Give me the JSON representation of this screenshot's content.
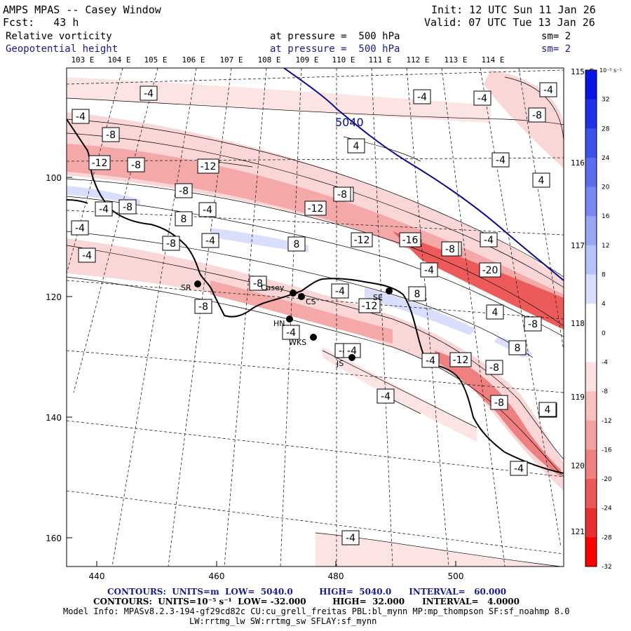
{
  "header": {
    "title": "AMPS MPAS -- Casey Window",
    "fcst": "Fcst:   43 h",
    "init": "Init: 12 UTC Sun 11 Jan 26",
    "valid": "Valid: 07 UTC Tue 13 Jan 26",
    "field1": "Relative vorticity",
    "field2": "Geopotential height",
    "pressure1": "at pressure =  500 hPa",
    "pressure2": "at pressure =  500 hPa",
    "sm1": "sm= 2",
    "sm2": "sm= 2"
  },
  "axes": {
    "lon_top": [
      "103 E",
      "104 E",
      "105 E",
      "106 E",
      "107 E",
      "108 E",
      "109 E",
      "110 E",
      "111 E",
      "112 E",
      "113 E",
      "114 E"
    ],
    "lat_right": [
      "115 E",
      "116 E",
      "117 E",
      "118 E",
      "119 E",
      "120 E",
      "121 E"
    ],
    "y_ticks": [
      "100",
      "120",
      "140",
      "160"
    ],
    "x_ticks": [
      "440",
      "460",
      "480",
      "500"
    ]
  },
  "colorbar": {
    "unit": "10⁻⁵ s⁻¹",
    "labels": [
      "32",
      "28",
      "24",
      "20",
      "16",
      "12",
      "8",
      "4",
      "0",
      "-4",
      "-8",
      "-12",
      "-16",
      "-20",
      "-24",
      "-28",
      "-32"
    ],
    "colors": [
      "#0a14e6",
      "#1e32e8",
      "#3c50ea",
      "#5a6eee",
      "#7888f2",
      "#98a6f6",
      "#b8c2fa",
      "#d8defc",
      "#ffffff",
      "#ffffff",
      "#fde0e0",
      "#f9c0c0",
      "#f5a0a0",
      "#f08080",
      "#ec5858",
      "#e83030",
      "#ff0000"
    ]
  },
  "stations": [
    {
      "name": "SR"
    },
    {
      "name": "Casey"
    },
    {
      "name": "CS"
    },
    {
      "name": "HN"
    },
    {
      "name": "WKS"
    },
    {
      "name": "JS"
    },
    {
      "name": "SE"
    }
  ],
  "height_contour_label": "5040",
  "contour_labels": [
    "-4",
    "-4",
    "-4",
    "-4",
    "-4",
    "-8",
    "-8",
    "-8",
    "-12",
    "-8",
    "-12",
    "-8",
    "-8",
    "-4",
    "-4",
    "-12",
    "-8",
    "-4",
    "-4",
    "-4",
    "-8",
    "8",
    "4",
    "-4",
    "4",
    "-12",
    "-16",
    "-8",
    "-4",
    "-20",
    "8",
    "-8",
    "-4",
    "-12",
    "-8",
    "-4",
    "-8",
    "-4",
    "8",
    "-4",
    "4",
    "-4",
    "-4",
    "-12",
    "-8",
    "-4",
    "-8",
    "-4",
    "-4",
    "4",
    "-4",
    "-4",
    "8",
    "-8"
  ],
  "footer": {
    "line1": "CONTOURS:  UNITS=m  LOW=  5040.0         HIGH=  5040.0      INTERVAL=   60.000",
    "line2": "CONTOURS:  UNITS=10⁻⁵ s⁻¹  LOW= -32.000         HIGH=  32.000      INTERVAL=   4.0000",
    "line3": "Model Info: MPASv8.2.3-194-gf29cd82c CU:cu_grell_freitas PBL:bl_mynn MP:mp_thompson SF:sf_noahmp 8.0",
    "line4": "LW:rrtmg_lw SW:rrtmg_sw SFLAY:sf_mynn"
  }
}
